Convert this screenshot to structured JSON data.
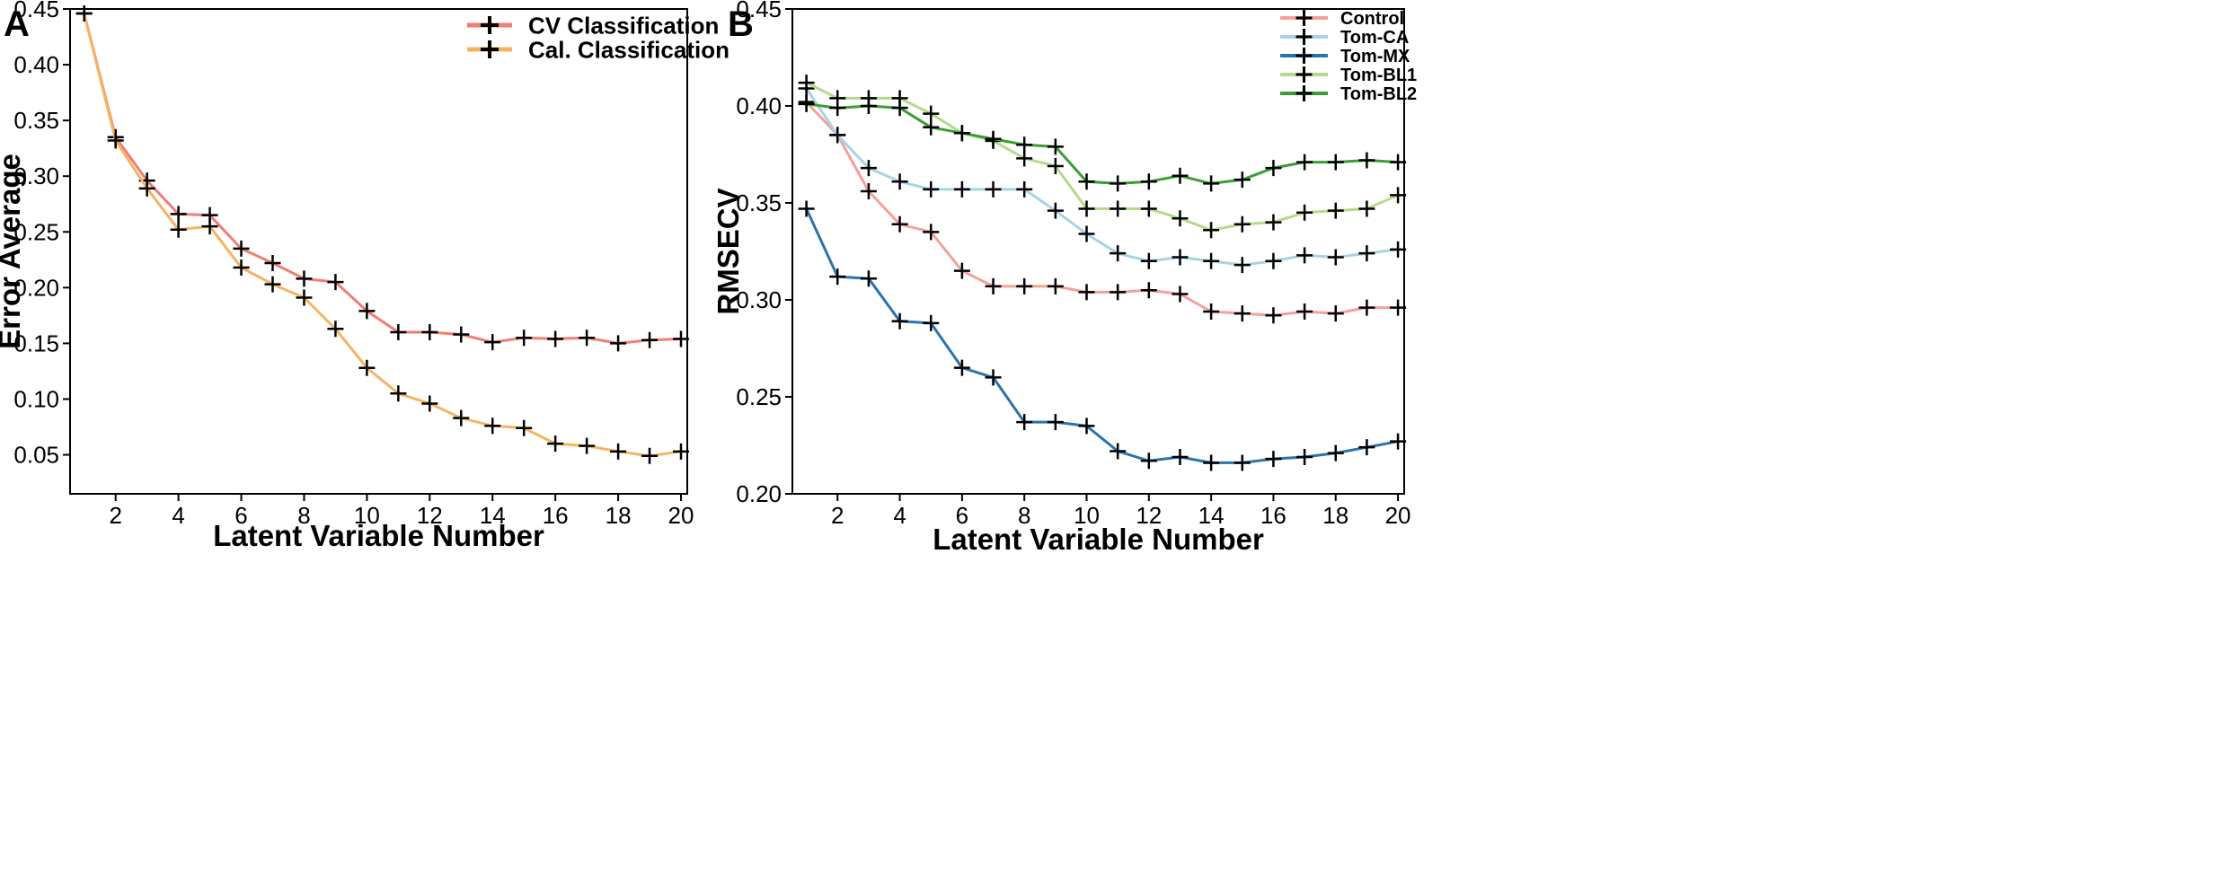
{
  "chart_data": [
    {
      "panel": "A",
      "type": "line",
      "xlabel": "Latent Variable Number",
      "ylabel": "Error Average",
      "xlim": [
        0.55,
        20.2
      ],
      "ylim": [
        0.015,
        0.45
      ],
      "xticks": [
        2,
        4,
        6,
        8,
        10,
        12,
        14,
        16,
        18,
        20
      ],
      "yticks": [
        0.05,
        0.1,
        0.15,
        0.2,
        0.25,
        0.3,
        0.35,
        0.4,
        0.45
      ],
      "ytick_labels": [
        "0.05",
        "0.10",
        "0.15",
        "0.20",
        "0.25",
        "0.30",
        "0.35",
        "0.40",
        "0.45"
      ],
      "legend_position": "top-right",
      "x": [
        1,
        2,
        3,
        4,
        5,
        6,
        7,
        8,
        9,
        10,
        11,
        12,
        13,
        14,
        15,
        16,
        17,
        18,
        19,
        20
      ],
      "series": [
        {
          "name": "CV Classification",
          "color": "#F07E74",
          "values": [
            0.446,
            0.335,
            0.296,
            0.266,
            0.265,
            0.235,
            0.222,
            0.208,
            0.205,
            0.179,
            0.16,
            0.16,
            0.158,
            0.151,
            0.155,
            0.154,
            0.155,
            0.15,
            0.153,
            0.154
          ]
        },
        {
          "name": "Cal. Classification",
          "color": "#F5B462",
          "values": [
            0.446,
            0.332,
            0.289,
            0.252,
            0.255,
            0.218,
            0.203,
            0.191,
            0.163,
            0.128,
            0.105,
            0.096,
            0.083,
            0.076,
            0.074,
            0.06,
            0.058,
            0.053,
            0.049,
            0.053
          ]
        }
      ]
    },
    {
      "panel": "B",
      "type": "line",
      "xlabel": "Latent Variable Number",
      "ylabel": "RMSECV",
      "xlim": [
        0.55,
        20.2
      ],
      "ylim": [
        0.2,
        0.45
      ],
      "xticks": [
        2,
        4,
        6,
        8,
        10,
        12,
        14,
        16,
        18,
        20
      ],
      "yticks": [
        0.2,
        0.25,
        0.3,
        0.35,
        0.4,
        0.45
      ],
      "ytick_labels": [
        "0.20",
        "0.25",
        "0.30",
        "0.35",
        "0.40",
        "0.45"
      ],
      "legend_position": "top-right",
      "x": [
        1,
        2,
        3,
        4,
        5,
        6,
        7,
        8,
        9,
        10,
        11,
        12,
        13,
        14,
        15,
        16,
        17,
        18,
        19,
        20
      ],
      "series": [
        {
          "name": "Control",
          "color": "#F4A19A",
          "values": [
            0.402,
            0.385,
            0.356,
            0.339,
            0.335,
            0.315,
            0.307,
            0.307,
            0.307,
            0.304,
            0.304,
            0.305,
            0.303,
            0.294,
            0.293,
            0.292,
            0.294,
            0.293,
            0.296,
            0.296
          ]
        },
        {
          "name": "Tom-CA",
          "color": "#A9D2E4",
          "values": [
            0.409,
            0.385,
            0.368,
            0.361,
            0.357,
            0.357,
            0.357,
            0.357,
            0.346,
            0.334,
            0.324,
            0.32,
            0.322,
            0.32,
            0.318,
            0.32,
            0.323,
            0.322,
            0.324,
            0.326
          ]
        },
        {
          "name": "Tom-MX",
          "color": "#2B73AD",
          "values": [
            0.347,
            0.312,
            0.311,
            0.289,
            0.288,
            0.265,
            0.26,
            0.237,
            0.237,
            0.235,
            0.222,
            0.217,
            0.219,
            0.216,
            0.216,
            0.218,
            0.219,
            0.221,
            0.224,
            0.227
          ]
        },
        {
          "name": "Tom-BL1",
          "color": "#B3DB8A",
          "values": [
            0.412,
            0.404,
            0.404,
            0.404,
            0.396,
            0.386,
            0.382,
            0.373,
            0.369,
            0.347,
            0.347,
            0.347,
            0.342,
            0.336,
            0.339,
            0.34,
            0.345,
            0.346,
            0.347,
            0.354
          ]
        },
        {
          "name": "Tom-BL2",
          "color": "#3A9E34",
          "values": [
            0.401,
            0.399,
            0.4,
            0.399,
            0.389,
            0.386,
            0.383,
            0.38,
            0.379,
            0.361,
            0.36,
            0.361,
            0.364,
            0.36,
            0.362,
            0.368,
            0.371,
            0.371,
            0.372,
            0.371
          ]
        }
      ]
    }
  ]
}
